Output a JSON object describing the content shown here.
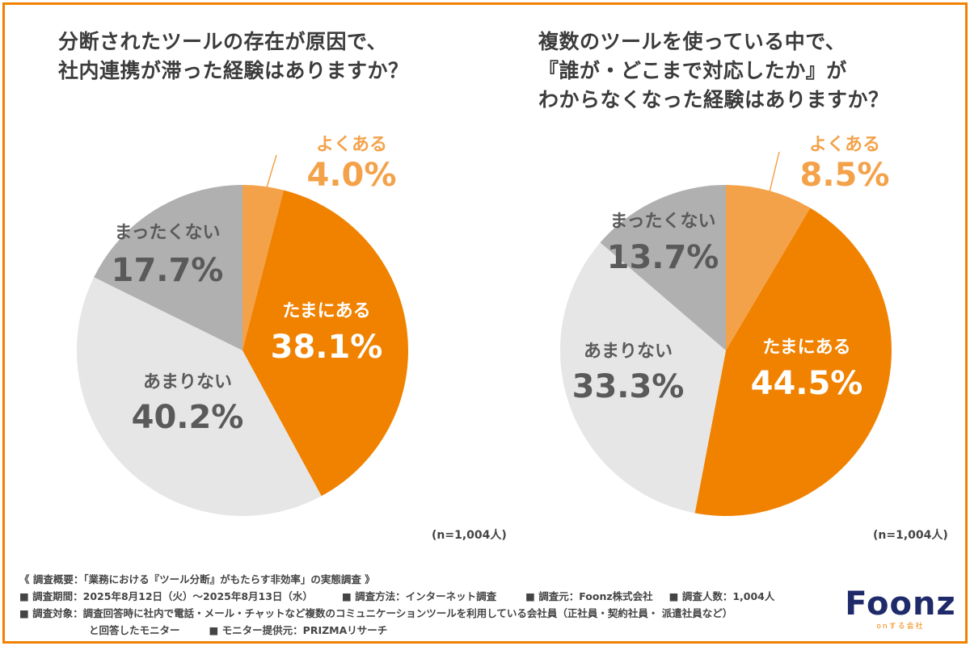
{
  "titles": {
    "left": [
      "分断されたツールの存在が原因で、",
      "社内連携が滞った経験はありますか？"
    ],
    "right": [
      "複数のツールを使っている中で、",
      "『誰が・どこまで対応したか』が",
      "わからなくなった経験はありますか？"
    ]
  },
  "chart_data": [
    {
      "type": "pie",
      "title": "分断されたツールの存在が原因で、社内連携が滞った経験はありますか？",
      "slices": [
        {
          "label": "よくある",
          "value": 4.0,
          "display": "4.0%",
          "color": "#f4a24a"
        },
        {
          "label": "たまにある",
          "value": 38.1,
          "display": "38.1%",
          "color": "#f08200"
        },
        {
          "label": "あまりない",
          "value": 40.2,
          "display": "40.2%",
          "color": "#e6e6e6"
        },
        {
          "label": "まったくない",
          "value": 17.7,
          "display": "17.7%",
          "color": "#b0b0b0"
        }
      ],
      "note": "(n=1,004人)"
    },
    {
      "type": "pie",
      "title": "複数のツールを使っている中で、『誰が・どこまで対応したか』がわからなくなった経験はありますか？",
      "slices": [
        {
          "label": "よくある",
          "value": 8.5,
          "display": "8.5%",
          "color": "#f4a24a"
        },
        {
          "label": "たまにある",
          "value": 44.5,
          "display": "44.5%",
          "color": "#f08200"
        },
        {
          "label": "あまりない",
          "value": 33.3,
          "display": "33.3%",
          "color": "#e6e6e6"
        },
        {
          "label": "まったくない",
          "value": 13.7,
          "display": "13.7%",
          "color": "#b0b0b0"
        }
      ],
      "note": "(n=1,004人)"
    }
  ],
  "footer": {
    "line1": "《 調査概要：「業務における『ツール分断』がもたらす非効率」の実態調査 》",
    "period": "■ 調査期間：2025年8月12日（火）〜2025年8月13日（水）",
    "method": "■ 調査方法：インターネット調査",
    "source": "■ 調査元：Foonz株式会社",
    "count": "■ 調査人数：1,004人",
    "target": "■ 調査対象：調査回答時に社内で電話・メール・チャットなど複数のコミュニケーションツールを利用している会社員（正社員・契約社員・ 派遣社員など）",
    "target2": "と回答したモニター",
    "provider": "■ モニター提供元：PRIZMAリサーチ"
  },
  "logo": {
    "text_main": "Foonz",
    "text_sub": "onする会社"
  }
}
